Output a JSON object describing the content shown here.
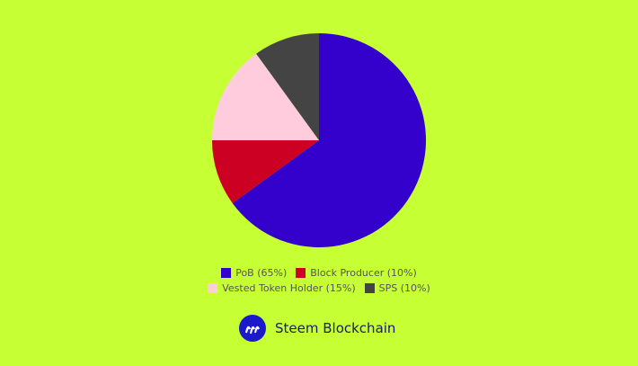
{
  "chart_data": {
    "type": "pie",
    "categories": [
      "PoB (65%)",
      "Block Producer (10%)",
      "Vested Token Holder (15%)",
      "SPS (10%)"
    ],
    "values": [
      65,
      10,
      15,
      10
    ],
    "colors": [
      "#3300cc",
      "#cc0022",
      "#ffccdd",
      "#444444"
    ]
  },
  "footer": {
    "text": "Steem Blockchain"
  }
}
